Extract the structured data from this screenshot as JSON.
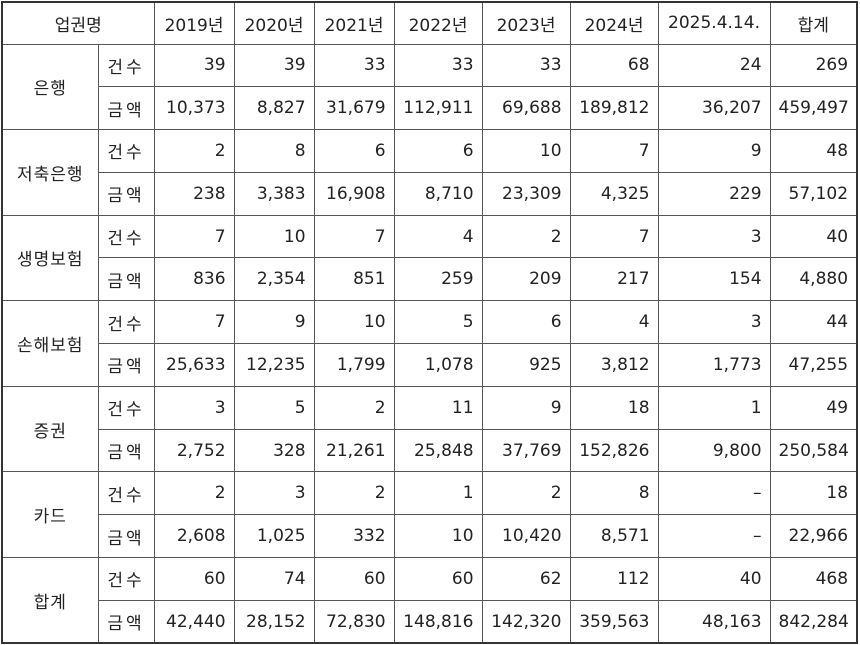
{
  "table": {
    "header": [
      "업권명",
      "2019년",
      "2020년",
      "2021년",
      "2022년",
      "2023년",
      "2024년",
      "2025.4.14.",
      "합계"
    ],
    "groups": [
      {
        "name": "은행",
        "rows": [
          {
            "label": "건수",
            "values": [
              "39",
              "39",
              "33",
              "33",
              "33",
              "68",
              "24",
              "269"
            ]
          },
          {
            "label": "금액",
            "values": [
              "10,373",
              "8,827",
              "31,679",
              "112,911",
              "69,688",
              "189,812",
              "36,207",
              "459,497"
            ]
          }
        ]
      },
      {
        "name": "저축은행",
        "rows": [
          {
            "label": "건수",
            "values": [
              "2",
              "8",
              "6",
              "6",
              "10",
              "7",
              "9",
              "48"
            ]
          },
          {
            "label": "금액",
            "values": [
              "238",
              "3,383",
              "16,908",
              "8,710",
              "23,309",
              "4,325",
              "229",
              "57,102"
            ]
          }
        ]
      },
      {
        "name": "생명보험",
        "rows": [
          {
            "label": "건수",
            "values": [
              "7",
              "10",
              "7",
              "4",
              "2",
              "7",
              "3",
              "40"
            ]
          },
          {
            "label": "금액",
            "values": [
              "836",
              "2,354",
              "851",
              "259",
              "209",
              "217",
              "154",
              "4,880"
            ]
          }
        ]
      },
      {
        "name": "손해보험",
        "rows": [
          {
            "label": "건수",
            "values": [
              "7",
              "9",
              "10",
              "5",
              "6",
              "4",
              "3",
              "44"
            ]
          },
          {
            "label": "금액",
            "values": [
              "25,633",
              "12,235",
              "1,799",
              "1,078",
              "925",
              "3,812",
              "1,773",
              "47,255"
            ]
          }
        ]
      },
      {
        "name": "증권",
        "rows": [
          {
            "label": "건수",
            "values": [
              "3",
              "5",
              "2",
              "11",
              "9",
              "18",
              "1",
              "49"
            ]
          },
          {
            "label": "금액",
            "values": [
              "2,752",
              "328",
              "21,261",
              "25,848",
              "37,769",
              "152,826",
              "9,800",
              "250,584"
            ]
          }
        ]
      },
      {
        "name": "카드",
        "rows": [
          {
            "label": "건수",
            "values": [
              "2",
              "3",
              "2",
              "1",
              "2",
              "8",
              "–",
              "18"
            ]
          },
          {
            "label": "금액",
            "values": [
              "2,608",
              "1,025",
              "332",
              "10",
              "10,420",
              "8,571",
              "–",
              "22,966"
            ]
          }
        ]
      },
      {
        "name": "합계",
        "rows": [
          {
            "label": "건수",
            "values": [
              "60",
              "74",
              "60",
              "60",
              "62",
              "112",
              "40",
              "468"
            ]
          },
          {
            "label": "금액",
            "values": [
              "42,440",
              "28,152",
              "72,830",
              "148,816",
              "142,320",
              "359,563",
              "48,163",
              "842,284"
            ]
          }
        ]
      }
    ]
  }
}
